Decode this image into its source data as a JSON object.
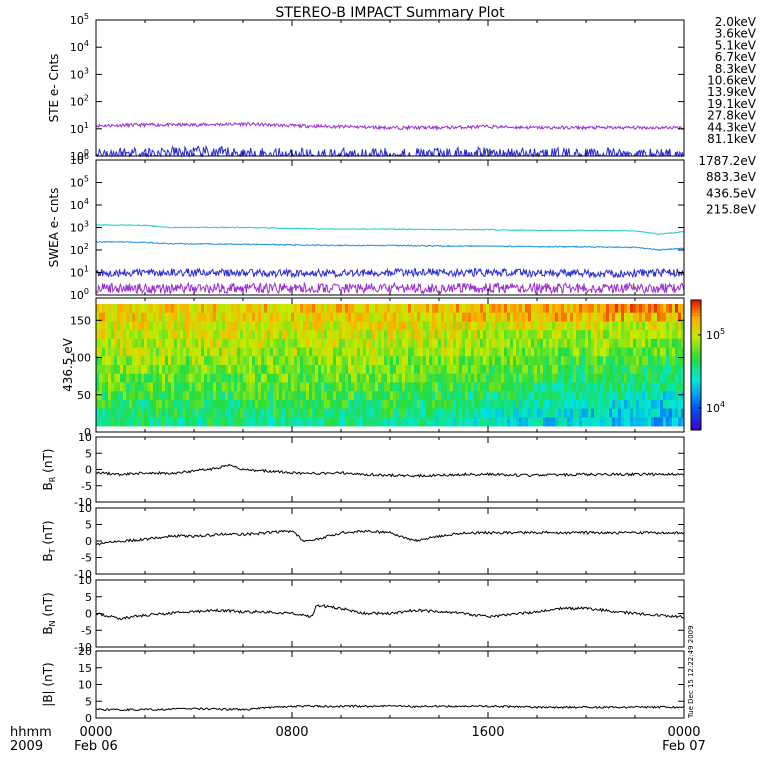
{
  "title": "STEREO-B IMPACT Summary Plot",
  "footer": {
    "time_label": "hhmm",
    "year_label": "2009",
    "ticks": [
      "0000",
      "0800",
      "1600",
      "0000"
    ],
    "dates": [
      "Feb 06",
      "",
      "",
      "Feb 07"
    ],
    "timestamp": "Tue Dec 15 12:22:49 2009"
  },
  "legend_ste": [
    {
      "label": "2.0keV",
      "color": "#9a2fd0"
    },
    {
      "label": "3.6keV",
      "color": "#5a2fd8"
    },
    {
      "label": "5.1keV",
      "color": "#2a4ae0"
    },
    {
      "label": "6.7keV",
      "color": "#20a8d8"
    },
    {
      "label": "8.3keV",
      "color": "#20d0b8"
    },
    {
      "label": "10.6keV",
      "color": "#28c850"
    },
    {
      "label": "13.9keV",
      "color": "#60d820"
    },
    {
      "label": "19.1keV",
      "color": "#c8e020"
    },
    {
      "label": "27.8keV",
      "color": "#e8d010"
    },
    {
      "label": "44.3keV",
      "color": "#f0a010"
    },
    {
      "label": "81.1keV",
      "color": "#e03010"
    }
  ],
  "legend_swea": [
    {
      "label": "1787.2eV",
      "color": "#9a2fd0"
    },
    {
      "label": "883.3eV",
      "color": "#2a2ad8"
    },
    {
      "label": "436.5eV",
      "color": "#2090e0"
    },
    {
      "label": "215.8eV",
      "color": "#20d0c0"
    }
  ],
  "chart_data": [
    {
      "type": "line",
      "ylabel": "STE e- Cnts",
      "yscale": "log",
      "ylim": [
        1,
        100000
      ],
      "yticks": [
        "10^0",
        "10^1",
        "10^2",
        "10^3",
        "10^4",
        "10^5"
      ],
      "x_range_hours": [
        0,
        24
      ],
      "series": [
        {
          "name": "2.0keV",
          "color": "#9a2fd0",
          "x": [
            0,
            2,
            4,
            6,
            8,
            10,
            12,
            14,
            16,
            18,
            20,
            22,
            24
          ],
          "values": [
            13,
            14,
            14,
            15,
            13,
            12,
            11,
            11,
            12,
            11,
            11,
            11,
            11
          ]
        },
        {
          "name": "3.6keV",
          "color": "#2a2ad8",
          "x": [
            0,
            4,
            8,
            12,
            16,
            20,
            24
          ],
          "values": [
            1.2,
            1.3,
            1.1,
            1.1,
            1.2,
            1.1,
            1.1
          ]
        }
      ]
    },
    {
      "type": "line",
      "ylabel": "SWEA e- cnts",
      "yscale": "log",
      "ylim": [
        1,
        1000000
      ],
      "yticks": [
        "10^0",
        "10^1",
        "10^2",
        "10^3",
        "10^4",
        "10^5",
        "10^6"
      ],
      "x_range_hours": [
        0,
        24
      ],
      "series": [
        {
          "name": "215.8eV",
          "color": "#20d0c0",
          "x": [
            0,
            2,
            3,
            6,
            8,
            10,
            12,
            14,
            16,
            18,
            20,
            22,
            23,
            24
          ],
          "values": [
            1300,
            1250,
            1000,
            1000,
            900,
            850,
            850,
            800,
            800,
            750,
            750,
            700,
            500,
            650
          ]
        },
        {
          "name": "436.5eV",
          "color": "#2090e0",
          "x": [
            0,
            2,
            3,
            6,
            8,
            10,
            12,
            14,
            16,
            18,
            20,
            22,
            23,
            24
          ],
          "values": [
            230,
            220,
            190,
            180,
            170,
            160,
            160,
            150,
            150,
            140,
            140,
            130,
            100,
            120
          ]
        },
        {
          "name": "883.3eV",
          "color": "#2a2ad8",
          "x": [
            0,
            4,
            8,
            12,
            16,
            20,
            24
          ],
          "values": [
            10,
            10,
            9,
            10,
            10,
            9,
            10
          ]
        },
        {
          "name": "1787.2eV",
          "color": "#9a2fd0",
          "x": [
            0,
            4,
            8,
            12,
            16,
            20,
            24
          ],
          "values": [
            2,
            2,
            2,
            2,
            2,
            2,
            2
          ]
        }
      ]
    },
    {
      "type": "heatmap",
      "ylabel": "436.5 eV",
      "ylim": [
        0,
        180
      ],
      "yticks": [
        0,
        50,
        100,
        150
      ],
      "x_range_hours": [
        0,
        24
      ],
      "colorbar": {
        "scale": "log",
        "range": [
          5000,
          300000
        ],
        "ticks": [
          "10^4",
          "10^5"
        ]
      },
      "notes": "Pitch-angle distribution: yellow/orange near 150-170 deg, green/cyan mid-range, blue at low angles after ~12h"
    },
    {
      "type": "line",
      "ylabel": "B_R (nT)",
      "ylim": [
        -10,
        10
      ],
      "yticks": [
        -10,
        -5,
        0,
        5,
        10
      ],
      "x": [
        0,
        1,
        2,
        3,
        4,
        5,
        5.5,
        6,
        7,
        8,
        9,
        10,
        11,
        12,
        13,
        14,
        15,
        16,
        18,
        20,
        22,
        24
      ],
      "values": [
        -1,
        -1.5,
        -1,
        -1.2,
        -0.5,
        0.5,
        1.5,
        0,
        -0.5,
        -1,
        -1.2,
        -1,
        -1.5,
        -1.8,
        -2,
        -1.8,
        -1.5,
        -1.5,
        -1.8,
        -1.5,
        -1.5,
        -1.5
      ]
    },
    {
      "type": "line",
      "ylabel": "B_T (nT)",
      "ylim": [
        -10,
        10
      ],
      "yticks": [
        -10,
        -5,
        0,
        5,
        10
      ],
      "x": [
        0,
        1,
        2,
        3,
        4,
        5,
        6,
        7,
        8,
        8.5,
        9,
        10,
        11,
        12,
        13,
        14,
        15,
        16,
        18,
        20,
        22,
        24
      ],
      "values": [
        -1,
        0,
        0.5,
        1.5,
        1.5,
        2,
        2,
        2.5,
        3,
        0,
        0.5,
        2.5,
        3,
        2.5,
        0,
        1.5,
        2.5,
        2.5,
        2.5,
        2.5,
        2.5,
        2.5
      ]
    },
    {
      "type": "line",
      "ylabel": "B_N (nT)",
      "ylim": [
        -10,
        10
      ],
      "yticks": [
        -10,
        -5,
        0,
        5,
        10
      ],
      "x": [
        0,
        1,
        2,
        3,
        4,
        5,
        6,
        7,
        8,
        8.8,
        9,
        10,
        11,
        12,
        13,
        14,
        15,
        16,
        18,
        19,
        20,
        22,
        24
      ],
      "values": [
        0,
        -1.5,
        -0.5,
        0,
        0.5,
        1,
        0.5,
        0.5,
        0,
        -1,
        2.5,
        1.5,
        0,
        0,
        1,
        0.5,
        0,
        -1,
        0.5,
        1.5,
        1.5,
        0,
        -1
      ]
    },
    {
      "type": "line",
      "ylabel": "|B| (nT)",
      "ylim": [
        0,
        20
      ],
      "yticks": [
        0,
        5,
        10,
        15,
        20
      ],
      "x": [
        0,
        2,
        4,
        6,
        8,
        10,
        12,
        14,
        16,
        18,
        20,
        22,
        24
      ],
      "values": [
        2.5,
        2.5,
        2.8,
        2.5,
        3.5,
        3.5,
        3.5,
        3.5,
        3.5,
        3.2,
        3.2,
        3.2,
        3.2
      ]
    }
  ]
}
